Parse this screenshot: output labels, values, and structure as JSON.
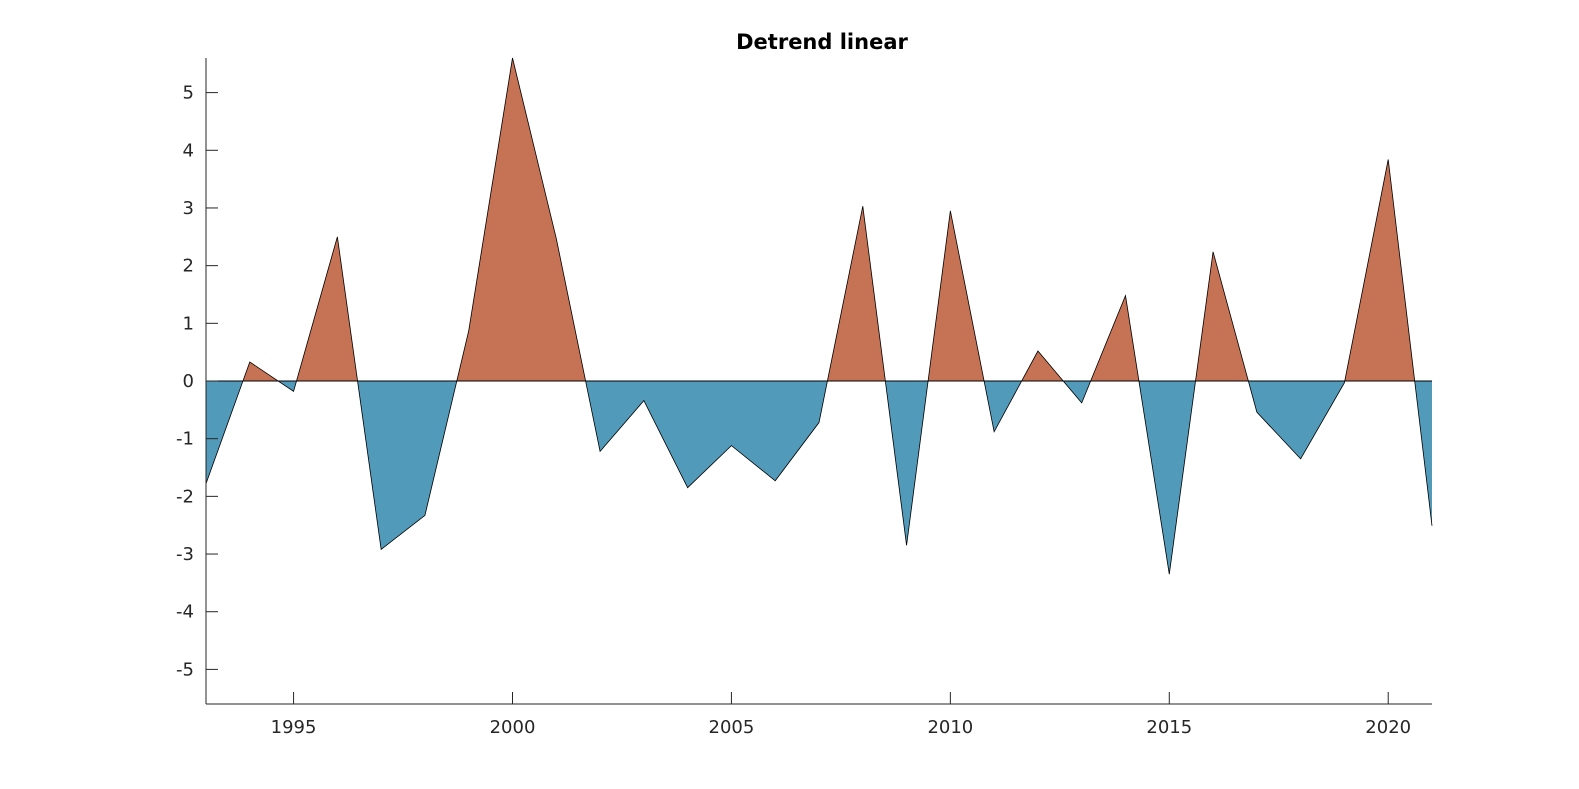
{
  "chart_data": {
    "type": "area",
    "title": "Detrend linear",
    "xlabel": "",
    "ylabel": "",
    "xlim": [
      1993,
      2021
    ],
    "ylim": [
      -5.6,
      5.6
    ],
    "xticks": [
      1995,
      2000,
      2005,
      2010,
      2015,
      2020
    ],
    "yticks": [
      5,
      4,
      3,
      2,
      1,
      0,
      -1,
      -2,
      -3,
      -4,
      -5
    ],
    "grid": false,
    "legend": "none",
    "x": [
      1993,
      1994,
      1995,
      1996,
      1997,
      1998,
      1999,
      2000,
      2001,
      2002,
      2003,
      2004,
      2005,
      2006,
      2007,
      2008,
      2009,
      2010,
      2011,
      2012,
      2013,
      2014,
      2015,
      2016,
      2017,
      2018,
      2019,
      2020,
      2021
    ],
    "y": [
      -1.78,
      0.33,
      -0.18,
      2.5,
      -2.92,
      -2.33,
      0.87,
      5.6,
      2.47,
      -1.22,
      -0.34,
      -1.85,
      -1.12,
      -1.73,
      -0.72,
      3.03,
      -2.85,
      2.95,
      -0.88,
      0.52,
      -0.38,
      1.48,
      -3.35,
      2.24,
      -0.54,
      -1.35,
      -0.03,
      3.84,
      -2.51
    ],
    "colors": {
      "positive": "#c67254",
      "negative": "#529aba",
      "outline": "#000000",
      "zero_line": "#000000"
    }
  }
}
